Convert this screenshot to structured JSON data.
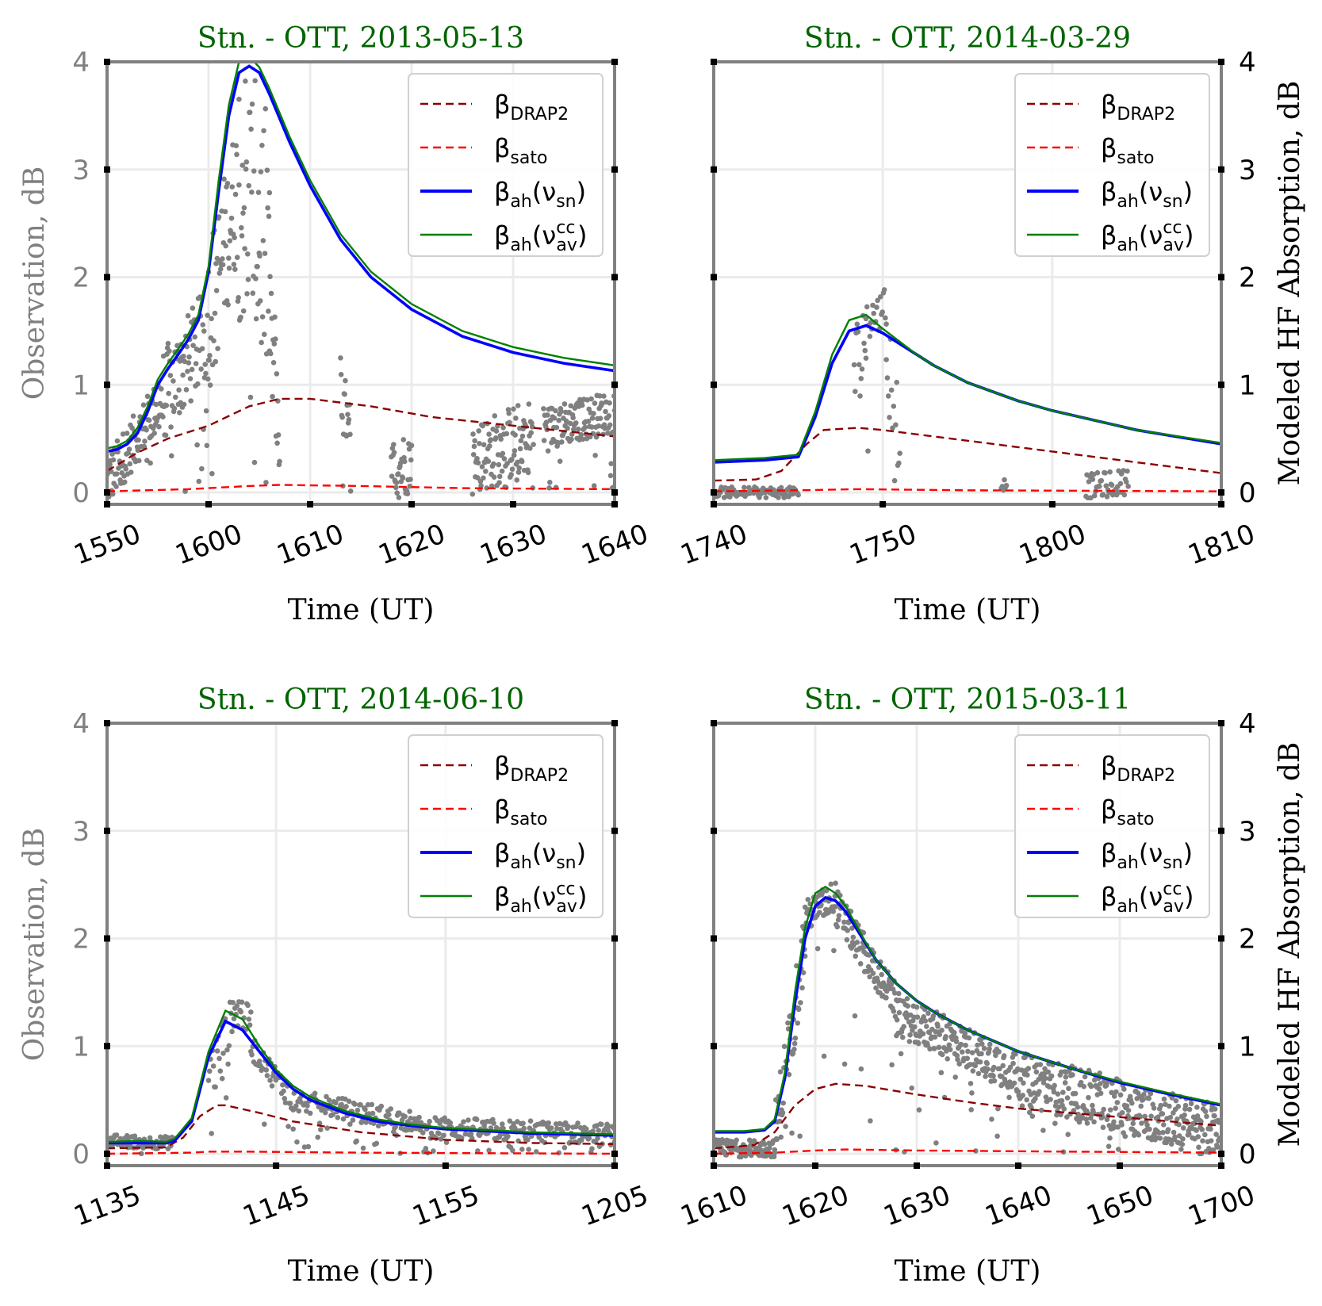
{
  "legend_labels": {
    "drap2": {
      "base": "β",
      "sub": "DRAP2"
    },
    "sato": {
      "base": "β",
      "sub": "sato"
    },
    "ah_sn": {
      "base": "β",
      "sub": "ah",
      "paren_open": "(ν",
      "paren_sub": "sn",
      "paren_close": ")"
    },
    "ah_cc": {
      "base": "β",
      "sub": "ah",
      "paren_open": "(ν",
      "paren_sup": "cc",
      "paren_sub": "av",
      "paren_close": ")"
    }
  },
  "colors": {
    "title": "#006400",
    "obs": "#808080",
    "drap2": "#8b0000",
    "sato": "#ff0000",
    "ah_sn": "#0000ff",
    "ah_cc": "#008000",
    "frame": "#808080",
    "grid": "#ebebeb"
  },
  "chart_data": [
    {
      "type": "line",
      "title": "Stn. - OTT, 2013-05-13",
      "xlabel": "Time (UT)",
      "ylabel_left": "Observation, dB",
      "ylabel_right": "",
      "xticks": [
        "1550",
        "1600",
        "1610",
        "1620",
        "1630",
        "1640"
      ],
      "xlim": [
        0,
        50
      ],
      "ylim": [
        0,
        4
      ],
      "yticks": [
        "0",
        "1",
        "2",
        "3",
        "4"
      ],
      "grid": true,
      "legend_position": "top-right",
      "series": [
        {
          "name": "β_DRAP2",
          "key": "drap2",
          "dash": true,
          "x": [
            0,
            3,
            6,
            10,
            14,
            17,
            20,
            26,
            32,
            40,
            50
          ],
          "y": [
            0.2,
            0.37,
            0.5,
            0.62,
            0.8,
            0.87,
            0.87,
            0.8,
            0.7,
            0.62,
            0.52
          ]
        },
        {
          "name": "β_sato",
          "key": "sato",
          "dash": true,
          "x": [
            0,
            8,
            14,
            17,
            25,
            35,
            50
          ],
          "y": [
            0.01,
            0.03,
            0.06,
            0.07,
            0.06,
            0.04,
            0.03
          ]
        },
        {
          "name": "β_ah(ν_sn)",
          "key": "ah_sn",
          "dash": false,
          "x": [
            0,
            1,
            2,
            3,
            4,
            5,
            6,
            7,
            8,
            9,
            10,
            11,
            12,
            13,
            14,
            15,
            16,
            18,
            20,
            23,
            26,
            30,
            35,
            40,
            45,
            50
          ],
          "y": [
            0.38,
            0.4,
            0.45,
            0.55,
            0.75,
            1.0,
            1.15,
            1.28,
            1.42,
            1.6,
            2.05,
            2.8,
            3.5,
            3.9,
            3.96,
            3.9,
            3.7,
            3.25,
            2.85,
            2.35,
            2.0,
            1.7,
            1.45,
            1.3,
            1.2,
            1.13
          ]
        },
        {
          "name": "β_ah(ν_av^cc)",
          "key": "ah_cc",
          "dash": false,
          "x": [
            0,
            1,
            2,
            3,
            4,
            5,
            6,
            7,
            8,
            9,
            10,
            11,
            12,
            13,
            14,
            15,
            16,
            18,
            20,
            23,
            26,
            30,
            35,
            40,
            45,
            50
          ],
          "y": [
            0.41,
            0.43,
            0.48,
            0.6,
            0.8,
            1.05,
            1.2,
            1.33,
            1.47,
            1.65,
            2.1,
            2.9,
            3.6,
            4.0,
            4.05,
            3.95,
            3.75,
            3.3,
            2.9,
            2.4,
            2.05,
            1.75,
            1.5,
            1.35,
            1.25,
            1.18
          ]
        }
      ],
      "observation": {
        "name": "Observation",
        "segments": [
          {
            "x0": 0,
            "x1": 5,
            "base": [
              0.1,
              0.8
            ],
            "spread": 0.25
          },
          {
            "x0": 5,
            "x1": 10,
            "base": [
              0.8,
              1.5
            ],
            "spread": 0.45
          },
          {
            "x0": 10,
            "x1": 13,
            "base": [
              1.6,
              2.9
            ],
            "spread": 0.7
          },
          {
            "x0": 13,
            "x1": 16,
            "base": [
              2.9,
              2.2
            ],
            "spread": 1.3
          },
          {
            "x0": 16,
            "x1": 17,
            "base": [
              1.5,
              0.8
            ],
            "spread": 0.6
          },
          {
            "x0": 23,
            "x1": 24,
            "base": [
              0.9,
              0.4
            ],
            "spread": 0.4
          },
          {
            "x0": 28,
            "x1": 30,
            "base": [
              0.2,
              0.3
            ],
            "spread": 0.3
          },
          {
            "x0": 36,
            "x1": 42,
            "base": [
              0.3,
              0.55
            ],
            "spread": 0.35
          },
          {
            "x0": 43,
            "x1": 50,
            "base": [
              0.6,
              0.75
            ],
            "spread": 0.2
          }
        ]
      }
    },
    {
      "type": "line",
      "title": "Stn. - OTT, 2014-03-29",
      "xlabel": "Time (UT)",
      "ylabel_left": "",
      "ylabel_right": "Modeled HF Absorption, dB",
      "xticks": [
        "1740",
        "1750",
        "1800",
        "1810"
      ],
      "xlim": [
        0,
        30
      ],
      "ylim": [
        0,
        4
      ],
      "yticks": [
        "0",
        "1",
        "2",
        "3",
        "4"
      ],
      "grid": true,
      "legend_position": "top-right",
      "series": [
        {
          "name": "β_DRAP2",
          "key": "drap2",
          "dash": true,
          "x": [
            0,
            2.5,
            4,
            5.5,
            6.5,
            8.5,
            10,
            15,
            20,
            25,
            30
          ],
          "y": [
            0.11,
            0.12,
            0.2,
            0.45,
            0.58,
            0.6,
            0.58,
            0.48,
            0.38,
            0.28,
            0.18
          ]
        },
        {
          "name": "β_sato",
          "key": "sato",
          "dash": true,
          "x": [
            0,
            5,
            8.5,
            15,
            30
          ],
          "y": [
            0.01,
            0.02,
            0.03,
            0.02,
            0.01
          ]
        },
        {
          "name": "β_ah(ν_sn)",
          "key": "ah_sn",
          "dash": false,
          "x": [
            0,
            3,
            5,
            6,
            7,
            8,
            9,
            10,
            11,
            12,
            13,
            15,
            18,
            20,
            25,
            30
          ],
          "y": [
            0.28,
            0.3,
            0.33,
            0.7,
            1.2,
            1.5,
            1.55,
            1.48,
            1.38,
            1.28,
            1.18,
            1.02,
            0.85,
            0.76,
            0.58,
            0.45
          ]
        },
        {
          "name": "β_ah(ν_av^cc)",
          "key": "ah_cc",
          "dash": false,
          "x": [
            0,
            3,
            5,
            6,
            7,
            8,
            9,
            10,
            11,
            12,
            13,
            15,
            18,
            20,
            25,
            30
          ],
          "y": [
            0.3,
            0.32,
            0.35,
            0.75,
            1.28,
            1.6,
            1.65,
            1.52,
            1.4,
            1.28,
            1.18,
            1.02,
            0.85,
            0.76,
            0.58,
            0.46
          ]
        }
      ],
      "observation": {
        "name": "Observation",
        "segments": [
          {
            "x0": 0,
            "x1": 5,
            "base": [
              0.0,
              0.0
            ],
            "spread": 0.05
          },
          {
            "x0": 8.3,
            "x1": 9,
            "base": [
              1.0,
              1.5
            ],
            "spread": 0.55
          },
          {
            "x0": 9,
            "x1": 10.2,
            "base": [
              1.6,
              1.7
            ],
            "spread": 0.2
          },
          {
            "x0": 10.2,
            "x1": 11,
            "base": [
              1.3,
              0.6
            ],
            "spread": 0.5
          },
          {
            "x0": 17,
            "x1": 17.3,
            "base": [
              0.05,
              0.1
            ],
            "spread": 0.05
          },
          {
            "x0": 22,
            "x1": 24.5,
            "base": [
              0.05,
              0.1
            ],
            "spread": 0.12
          }
        ]
      }
    },
    {
      "type": "line",
      "title": "Stn. - OTT, 2014-06-10",
      "xlabel": "Time (UT)",
      "ylabel_left": "Observation, dB",
      "ylabel_right": "",
      "xticks": [
        "1135",
        "1145",
        "1155",
        "1205"
      ],
      "xlim": [
        0,
        30
      ],
      "ylim": [
        0,
        4
      ],
      "yticks": [
        "0",
        "1",
        "2",
        "3",
        "4"
      ],
      "grid": true,
      "legend_position": "top-right",
      "series": [
        {
          "name": "β_DRAP2",
          "key": "drap2",
          "dash": true,
          "x": [
            0,
            3.5,
            4.5,
            5.5,
            6.5,
            7,
            9,
            11,
            15,
            20,
            25,
            30
          ],
          "y": [
            0.05,
            0.06,
            0.15,
            0.35,
            0.45,
            0.45,
            0.38,
            0.3,
            0.2,
            0.13,
            0.1,
            0.09
          ]
        },
        {
          "name": "β_sato",
          "key": "sato",
          "dash": true,
          "x": [
            0,
            5,
            6,
            8,
            15,
            30
          ],
          "y": [
            0.0,
            0.01,
            0.02,
            0.02,
            0.01,
            0.0
          ]
        },
        {
          "name": "β_ah(ν_sn)",
          "key": "ah_sn",
          "dash": false,
          "x": [
            0,
            2,
            3.5,
            4,
            5,
            6,
            7,
            8,
            9,
            10,
            11,
            12,
            14,
            16,
            18,
            20,
            25,
            30
          ],
          "y": [
            0.1,
            0.1,
            0.1,
            0.12,
            0.3,
            0.9,
            1.23,
            1.15,
            0.95,
            0.75,
            0.6,
            0.5,
            0.38,
            0.3,
            0.26,
            0.23,
            0.19,
            0.17
          ]
        },
        {
          "name": "β_ah(ν_av^cc)",
          "key": "ah_cc",
          "dash": false,
          "x": [
            0,
            2,
            3.5,
            4,
            5,
            6,
            7,
            8,
            9,
            10,
            11,
            12,
            14,
            16,
            18,
            20,
            25,
            30
          ],
          "y": [
            0.11,
            0.12,
            0.11,
            0.14,
            0.33,
            0.95,
            1.33,
            1.25,
            1.0,
            0.78,
            0.63,
            0.53,
            0.4,
            0.32,
            0.27,
            0.24,
            0.2,
            0.18
          ]
        }
      ],
      "observation": {
        "name": "Observation",
        "segments": [
          {
            "x0": 0,
            "x1": 4,
            "base": [
              0.12,
              0.1
            ],
            "spread": 0.06
          },
          {
            "x0": 6,
            "x1": 7.5,
            "base": [
              0.7,
              1.2
            ],
            "spread": 0.3
          },
          {
            "x0": 7.5,
            "x1": 8.5,
            "base": [
              1.4,
              1.2
            ],
            "spread": 0.15
          },
          {
            "x0": 8.5,
            "x1": 11,
            "base": [
              1.0,
              0.5
            ],
            "spread": 0.12
          },
          {
            "x0": 11,
            "x1": 18,
            "base": [
              0.5,
              0.3
            ],
            "spread": 0.1
          },
          {
            "x0": 18,
            "x1": 30,
            "base": [
              0.25,
              0.18
            ],
            "spread": 0.1
          }
        ]
      }
    },
    {
      "type": "line",
      "title": "Stn. - OTT, 2015-03-11",
      "xlabel": "Time (UT)",
      "ylabel_left": "",
      "ylabel_right": "Modeled HF Absorption, dB",
      "xticks": [
        "1610",
        "1620",
        "1630",
        "1640",
        "1650",
        "1700"
      ],
      "xlim": [
        0,
        50
      ],
      "ylim": [
        0,
        4
      ],
      "yticks": [
        "0",
        "1",
        "2",
        "3",
        "4"
      ],
      "grid": true,
      "legend_position": "top-right",
      "series": [
        {
          "name": "β_DRAP2",
          "key": "drap2",
          "dash": true,
          "x": [
            0,
            4,
            6,
            8,
            10,
            12,
            15,
            20,
            25,
            30,
            40,
            50
          ],
          "y": [
            0.05,
            0.08,
            0.2,
            0.45,
            0.6,
            0.65,
            0.63,
            0.55,
            0.48,
            0.42,
            0.34,
            0.26
          ]
        },
        {
          "name": "β_sato",
          "key": "sato",
          "dash": true,
          "x": [
            0,
            6,
            10,
            13,
            20,
            35,
            50
          ],
          "y": [
            0.0,
            0.01,
            0.03,
            0.04,
            0.03,
            0.02,
            0.01
          ]
        },
        {
          "name": "β_ah(ν_sn)",
          "key": "ah_sn",
          "dash": false,
          "x": [
            0,
            3,
            5,
            6,
            7,
            8,
            9,
            10,
            11,
            12,
            13,
            14,
            15,
            16,
            18,
            20,
            22,
            25,
            30,
            35,
            40,
            45,
            50
          ],
          "y": [
            0.2,
            0.2,
            0.22,
            0.3,
            0.7,
            1.4,
            2.0,
            2.3,
            2.38,
            2.35,
            2.25,
            2.1,
            1.95,
            1.8,
            1.58,
            1.42,
            1.3,
            1.15,
            0.95,
            0.8,
            0.66,
            0.55,
            0.45
          ]
        },
        {
          "name": "β_ah(ν_av^cc)",
          "key": "ah_cc",
          "dash": false,
          "x": [
            0,
            3,
            5,
            6,
            7,
            8,
            9,
            10,
            11,
            12,
            13,
            14,
            15,
            16,
            18,
            20,
            22,
            25,
            30,
            35,
            40,
            45,
            50
          ],
          "y": [
            0.21,
            0.21,
            0.23,
            0.32,
            0.75,
            1.5,
            2.1,
            2.42,
            2.48,
            2.42,
            2.3,
            2.13,
            1.96,
            1.8,
            1.58,
            1.42,
            1.3,
            1.15,
            0.95,
            0.8,
            0.67,
            0.56,
            0.46
          ]
        }
      ],
      "observation": {
        "name": "Observation",
        "segments": [
          {
            "x0": 0,
            "x1": 6,
            "base": [
              0.05,
              0.05
            ],
            "spread": 0.08
          },
          {
            "x0": 6,
            "x1": 9,
            "base": [
              0.1,
              2.0
            ],
            "spread": 0.35
          },
          {
            "x0": 9,
            "x1": 12,
            "base": [
              2.2,
              2.4
            ],
            "spread": 0.15
          },
          {
            "x0": 12,
            "x1": 18,
            "base": [
              2.3,
              1.4
            ],
            "spread": 0.18
          },
          {
            "x0": 18,
            "x1": 30,
            "base": [
              1.3,
              0.75
            ],
            "spread": 0.2
          },
          {
            "x0": 30,
            "x1": 50,
            "base": [
              0.7,
              0.2
            ],
            "spread": 0.25
          }
        ]
      }
    }
  ]
}
